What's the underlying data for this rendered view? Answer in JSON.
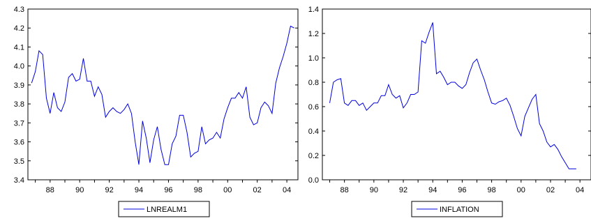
{
  "chart_data": [
    {
      "type": "line",
      "title": "",
      "xlabel": "",
      "ylabel": "",
      "x_start": 1986.75,
      "x_step": 0.25,
      "xlim": [
        1986.5,
        2004.75
      ],
      "ylim": [
        3.4,
        4.3
      ],
      "y_ticks": [
        3.4,
        3.5,
        3.6,
        3.7,
        3.8,
        3.9,
        4.0,
        4.1,
        4.2,
        4.3
      ],
      "y_tick_labels": [
        "3.4",
        "3.5",
        "3.6",
        "3.7",
        "3.8",
        "3.9",
        "4.0",
        "4.1",
        "4.2",
        "4.3"
      ],
      "x_ticks": [
        1988,
        1990,
        1992,
        1994,
        1996,
        1998,
        2000,
        2002,
        2004
      ],
      "x_tick_labels": [
        "88",
        "90",
        "92",
        "94",
        "96",
        "98",
        "00",
        "02",
        "04"
      ],
      "grid": false,
      "legend_position": "bottom-center",
      "series": [
        {
          "name": "LNREALM1",
          "color": "#0000dd",
          "values": [
            3.91,
            3.97,
            4.08,
            4.06,
            3.83,
            3.75,
            3.86,
            3.78,
            3.76,
            3.81,
            3.94,
            3.96,
            3.92,
            3.93,
            4.04,
            3.92,
            3.92,
            3.84,
            3.89,
            3.85,
            3.73,
            3.76,
            3.78,
            3.76,
            3.75,
            3.77,
            3.8,
            3.75,
            3.6,
            3.48,
            3.71,
            3.62,
            3.49,
            3.61,
            3.68,
            3.56,
            3.48,
            3.48,
            3.59,
            3.63,
            3.74,
            3.74,
            3.65,
            3.52,
            3.54,
            3.55,
            3.68,
            3.59,
            3.61,
            3.62,
            3.65,
            3.62,
            3.72,
            3.78,
            3.83,
            3.83,
            3.86,
            3.83,
            3.89,
            3.73,
            3.69,
            3.7,
            3.78,
            3.81,
            3.79,
            3.75,
            3.91,
            3.99,
            4.05,
            4.12,
            4.21,
            4.2
          ]
        }
      ]
    },
    {
      "type": "line",
      "title": "",
      "xlabel": "",
      "ylabel": "",
      "x_start": 1987.0,
      "x_step": 0.25,
      "xlim": [
        1986.5,
        2004.75
      ],
      "ylim": [
        0.0,
        1.4
      ],
      "y_ticks": [
        0.0,
        0.2,
        0.4,
        0.6,
        0.8,
        1.0,
        1.2,
        1.4
      ],
      "y_tick_labels": [
        "0.0",
        "0.2",
        "0.4",
        "0.6",
        "0.8",
        "1.0",
        "1.2",
        "1.4"
      ],
      "x_ticks": [
        1988,
        1990,
        1992,
        1994,
        1996,
        1998,
        2000,
        2002,
        2004
      ],
      "x_tick_labels": [
        "88",
        "90",
        "92",
        "94",
        "96",
        "98",
        "00",
        "02",
        "04"
      ],
      "grid": false,
      "legend_position": "bottom-center",
      "series": [
        {
          "name": "INFLATION",
          "color": "#0000dd",
          "values": [
            0.63,
            0.8,
            0.82,
            0.83,
            0.63,
            0.61,
            0.65,
            0.65,
            0.61,
            0.63,
            0.57,
            0.6,
            0.63,
            0.63,
            0.69,
            0.69,
            0.78,
            0.7,
            0.67,
            0.69,
            0.59,
            0.63,
            0.7,
            0.7,
            0.72,
            1.14,
            1.12,
            1.21,
            1.29,
            0.87,
            0.89,
            0.84,
            0.78,
            0.8,
            0.8,
            0.77,
            0.75,
            0.78,
            0.88,
            0.96,
            0.99,
            0.9,
            0.82,
            0.72,
            0.63,
            0.62,
            0.64,
            0.65,
            0.67,
            0.61,
            0.52,
            0.42,
            0.36,
            0.52,
            0.59,
            0.66,
            0.7,
            0.46,
            0.4,
            0.31,
            0.27,
            0.29,
            0.25,
            0.19,
            0.14,
            0.09,
            0.09,
            0.09
          ]
        }
      ]
    }
  ]
}
